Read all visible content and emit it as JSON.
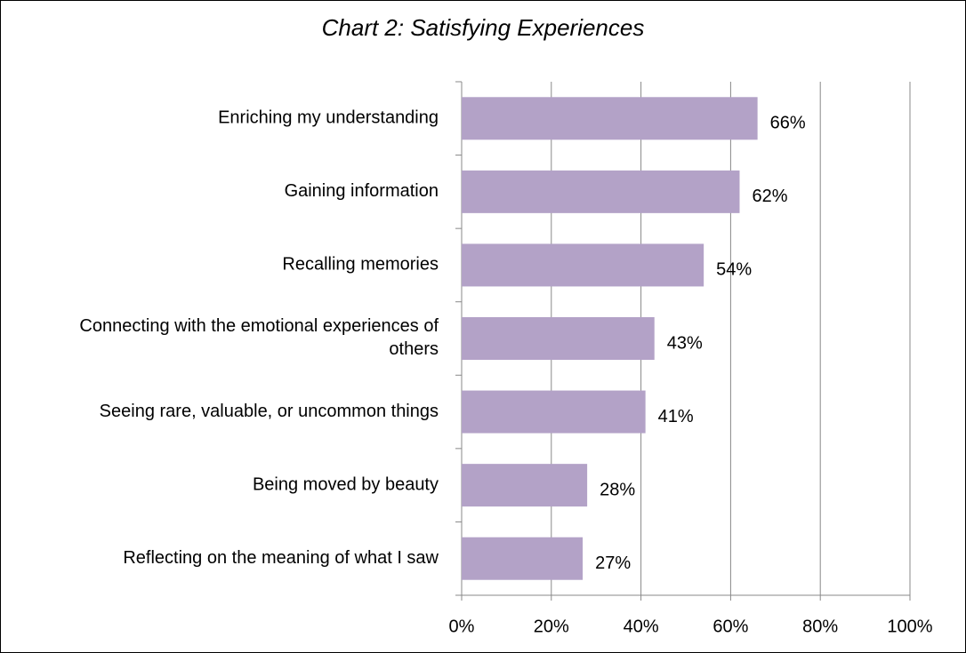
{
  "chart_data": {
    "type": "bar",
    "orientation": "horizontal",
    "title": "Chart 2: Satisfying Experiences",
    "categories": [
      "Enriching my understanding",
      "Gaining information",
      "Recalling memories",
      "Connecting with the emotional experiences of others",
      "Seeing rare, valuable, or uncommon things",
      "Being moved by beauty",
      "Reflecting on the meaning of what I saw"
    ],
    "values": [
      66,
      62,
      54,
      43,
      41,
      28,
      27
    ],
    "value_labels": [
      "66%",
      "62%",
      "54%",
      "43%",
      "41%",
      "28%",
      "27%"
    ],
    "color": "#b3a2c7",
    "xlim": [
      0,
      100
    ],
    "xticks": [
      {
        "value": 0,
        "label": "0%"
      },
      {
        "value": 20,
        "label": "20%"
      },
      {
        "value": 40,
        "label": "40%"
      },
      {
        "value": 60,
        "label": "60%"
      },
      {
        "value": 80,
        "label": "80%"
      },
      {
        "value": 100,
        "label": "100%"
      }
    ],
    "grid": true
  }
}
